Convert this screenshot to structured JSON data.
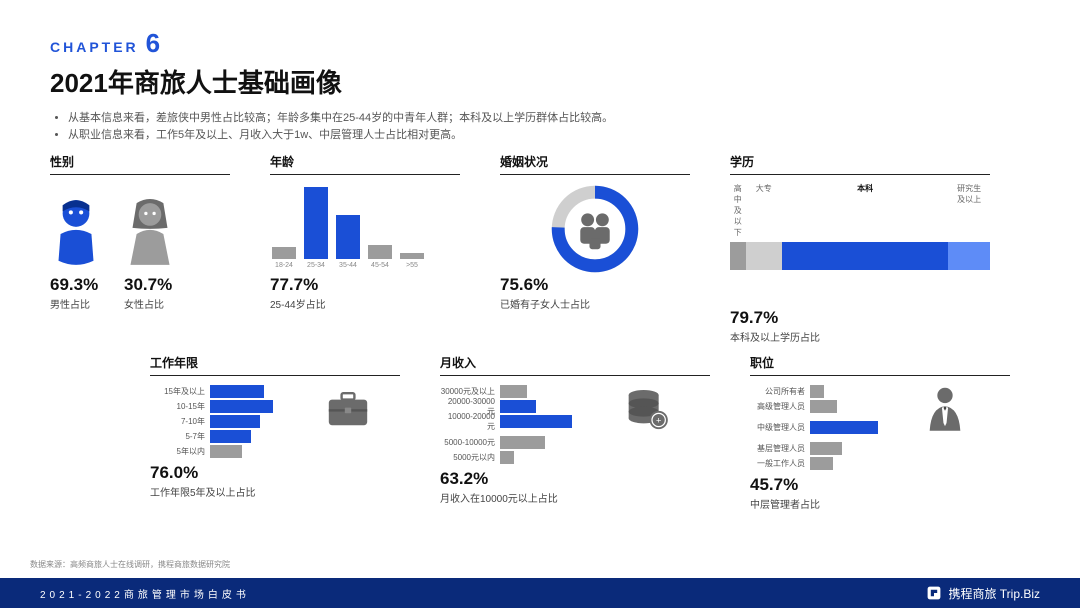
{
  "chapter": {
    "label": "CHAPTER",
    "number": "6"
  },
  "title": "2021年商旅人士基础画像",
  "bullets": [
    "从基本信息来看，差旅侠中男性占比较高；年龄多集中在25-44岁的中青年人群；本科及以上学历群体占比较高。",
    "从职业信息来看，工作5年及以上、月收入大于1w、中层管理人士占比相对更高。"
  ],
  "colors": {
    "accent": "#1a4fd6",
    "grey": "#9c9c9c",
    "light_grey": "#cfcfcf",
    "text": "#111111",
    "footer_bg": "#0a2a7a"
  },
  "gender": {
    "title": "性别",
    "male": {
      "pct": "69.3%",
      "label": "男性占比",
      "icon_color": "#1a4fd6"
    },
    "female": {
      "pct": "30.7%",
      "label": "女性占比",
      "icon_color": "#9c9c9c"
    }
  },
  "age": {
    "type": "bar",
    "title": "年龄",
    "categories": [
      "18-24",
      "25-34",
      "35-44",
      "45-54",
      ">55"
    ],
    "heights": [
      12,
      72,
      44,
      14,
      6
    ],
    "colors": [
      "#9c9c9c",
      "#1a4fd6",
      "#1a4fd6",
      "#9c9c9c",
      "#9c9c9c"
    ],
    "stat_pct": "77.7%",
    "stat_label": "25-44岁占比"
  },
  "marital": {
    "type": "donut",
    "title": "婚姻状况",
    "value_pct": 75.6,
    "ring_color": "#1a4fd6",
    "ring_bg": "#cfcfcf",
    "stat_pct": "75.6%",
    "stat_label": "已婚有子女人士占比"
  },
  "edu": {
    "type": "stacked-bar",
    "title": "学历",
    "segments": [
      {
        "label": "高中及\n以下",
        "width_pct": 6,
        "color": "#9c9c9c",
        "bold": false
      },
      {
        "label": "大专",
        "width_pct": 14,
        "color": "#cfcfcf",
        "bold": false
      },
      {
        "label": "本科",
        "width_pct": 64,
        "color": "#1a4fd6",
        "bold": true
      },
      {
        "label": "研究生\n及以上",
        "width_pct": 16,
        "color": "#5e8cf7",
        "bold": false
      }
    ],
    "stat_pct": "79.7%",
    "stat_label": "本科及以上学历占比"
  },
  "work": {
    "type": "h-bar",
    "title": "工作年限",
    "rows": [
      {
        "label": "15年及以上",
        "width_pct": 60,
        "color": "#1a4fd6"
      },
      {
        "label": "10-15年",
        "width_pct": 70,
        "color": "#1a4fd6"
      },
      {
        "label": "7-10年",
        "width_pct": 55,
        "color": "#1a4fd6"
      },
      {
        "label": "5-7年",
        "width_pct": 45,
        "color": "#1a4fd6"
      },
      {
        "label": "5年以内",
        "width_pct": 35,
        "color": "#9c9c9c"
      }
    ],
    "stat_pct": "76.0%",
    "stat_label": "工作年限5年及以上占比"
  },
  "income": {
    "type": "h-bar",
    "title": "月收入",
    "rows": [
      {
        "label": "30000元及以上",
        "width_pct": 30,
        "color": "#9c9c9c"
      },
      {
        "label": "20000-30000元",
        "width_pct": 40,
        "color": "#1a4fd6"
      },
      {
        "label": "10000-20000元",
        "width_pct": 80,
        "color": "#1a4fd6"
      },
      {
        "label": "",
        "width_pct": 0,
        "color": "#ffffff"
      },
      {
        "label": "5000-10000元",
        "width_pct": 50,
        "color": "#9c9c9c"
      },
      {
        "label": "5000元以内",
        "width_pct": 15,
        "color": "#9c9c9c"
      }
    ],
    "stat_pct": "63.2%",
    "stat_label": "月收入在10000元以上占比"
  },
  "position": {
    "type": "h-bar",
    "title": "职位",
    "rows": [
      {
        "label": "公司所有者",
        "width_pct": 15,
        "color": "#9c9c9c"
      },
      {
        "label": "高级管理人员",
        "width_pct": 30,
        "color": "#9c9c9c"
      },
      {
        "label": "",
        "width_pct": 0,
        "color": "#ffffff"
      },
      {
        "label": "中级管理人员",
        "width_pct": 75,
        "color": "#1a4fd6"
      },
      {
        "label": "",
        "width_pct": 0,
        "color": "#ffffff"
      },
      {
        "label": "基层管理人员",
        "width_pct": 35,
        "color": "#9c9c9c"
      },
      {
        "label": "一般工作人员",
        "width_pct": 25,
        "color": "#9c9c9c"
      }
    ],
    "stat_pct": "45.7%",
    "stat_label": "中层管理者占比"
  },
  "source": "数据来源：高频商旅人士在线调研，携程商旅数据研究院",
  "footer": {
    "left": "2021-2022商旅管理市场白皮书",
    "brand": "携程商旅 Trip.Biz"
  }
}
